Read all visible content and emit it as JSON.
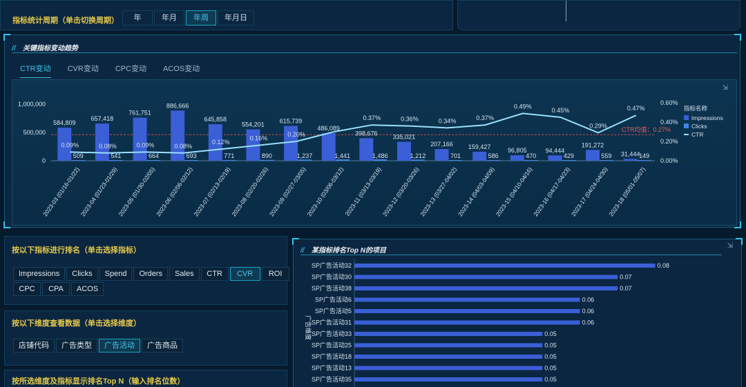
{
  "period": {
    "label": "指标统计周期（单击切换周期）",
    "options": [
      "年",
      "年月",
      "年周",
      "年月日"
    ],
    "active": 2
  },
  "trend_panel": {
    "title": "关键指标变动趋势",
    "tabs": [
      "CTR变动",
      "CVR变动",
      "CPC变动",
      "ACOS变动"
    ],
    "active_tab": 0,
    "avg_label": "CTR均值：0.27%",
    "legend_title": "指标名称",
    "toolbox_icon": "filter-icon"
  },
  "chart_data": [
    {
      "type": "bar+line",
      "categories": [
        "2023-03 (01/16-01/22)",
        "2023-04 (01/23-01/29)",
        "2023-05 (01/30-02/05)",
        "2023-06 (02/06-02/12)",
        "2023-07 (02/13-02/19)",
        "2023-08 (02/20-02/26)",
        "2023-09 (02/27-03/05)",
        "2023-10 (03/06-03/12)",
        "2023-11 (03/13-03/19)",
        "2023-12 (03/20-03/26)",
        "2023-13 (03/27-04/02)",
        "2023-14 (04/03-04/09)",
        "2023-15 (04/10-04/16)",
        "2023-16 (04/17-04/23)",
        "2023-17 (04/24-04/30)",
        "2023-18 (05/01-05/07)"
      ],
      "series": [
        {
          "name": "Impressions",
          "type": "bar",
          "axis": "left",
          "values": [
            584809,
            657418,
            761751,
            886666,
            645858,
            554201,
            615739,
            486089,
            398676,
            335021,
            207166,
            159427,
            96805,
            94444,
            191272,
            31444
          ],
          "labels": [
            "584,809",
            "657,418",
            "761,751",
            "886,666",
            "645,858",
            "554,201",
            "615,739",
            "486,089",
            "398,676",
            "335,021",
            "207,166",
            "159,427",
            "96,805",
            "94,444",
            "191,272",
            "31,444"
          ]
        },
        {
          "name": "Clicks",
          "type": "bar",
          "axis": "left",
          "values": [
            509,
            541,
            664,
            693,
            771,
            890,
            1237,
            1441,
            1486,
            1212,
            701,
            586,
            470,
            429,
            559,
            149
          ],
          "labels": [
            "509",
            "541",
            "664",
            "693",
            "771",
            "890",
            "1,237",
            "1,441",
            "1,486",
            "1,212",
            "701",
            "586",
            "470",
            "429",
            "559",
            "149"
          ]
        },
        {
          "name": "CTR",
          "type": "line",
          "axis": "right",
          "values": [
            0.09,
            0.08,
            0.09,
            0.08,
            0.12,
            0.16,
            0.2,
            0.3,
            0.37,
            0.36,
            0.34,
            0.37,
            0.49,
            0.45,
            0.29,
            0.47
          ],
          "labels": [
            "0.09%",
            "0.08%",
            "0.09%",
            "0.08%",
            "0.12%",
            "0.16%",
            "0.20%",
            "",
            "0.37%",
            "0.36%",
            "0.34%",
            "0.37%",
            "0.49%",
            "0.45%",
            "0.29%",
            "0.47%"
          ]
        }
      ],
      "left_ticks": [
        "1,000,000",
        "500,000",
        "0"
      ],
      "left_ylim": [
        0,
        1000000
      ],
      "right_ticks": [
        "0.60%",
        "0.40%",
        "0.20%",
        "0.00%"
      ],
      "right_ylim": [
        0,
        0.6
      ],
      "mark_line": 0.27,
      "legend_position": "right"
    },
    {
      "type": "bar",
      "orientation": "horizontal",
      "title": "某指标排名Top  N的项目",
      "ylabel": "广告维度",
      "categories": [
        "SP广告活动32",
        "SP广告活动30",
        "SP广告活动38",
        "SP广告活动6",
        "SP广告活动5",
        "SP广告活动31",
        "SP广告活动33",
        "SP广告活动25",
        "SP广告活动18",
        "SP广告活动13",
        "SP广告活动35"
      ],
      "values": [
        0.08,
        0.07,
        0.07,
        0.06,
        0.06,
        0.06,
        0.05,
        0.05,
        0.05,
        0.05,
        0.05
      ],
      "xlim": [
        0,
        0.09
      ]
    }
  ],
  "metric_select": {
    "label": "按以下指标进行排名（单击选择指标）",
    "rows": [
      [
        "Impressions",
        "Clicks",
        "Spend",
        "Orders",
        "Sales",
        "CTR",
        "CVR",
        "ROI"
      ],
      [
        "CPC",
        "CPA",
        "ACOS"
      ]
    ],
    "active": "CVR"
  },
  "dimension_select": {
    "label": "按以下维度查看数据（单击选择维度）",
    "options": [
      "店铺代码",
      "广告类型",
      "广告活动",
      "广告商品"
    ],
    "active": 2
  },
  "topn": {
    "label": "按所选维度及指标显示排名Top N（输入排名位数）"
  },
  "colors": {
    "accent": "#1fb0d8",
    "gold": "#e6c84a",
    "bar1": "#3b5fd6",
    "bar2": "#3c86e8",
    "line": "#9be0ff",
    "mark": "#d04a4a"
  }
}
